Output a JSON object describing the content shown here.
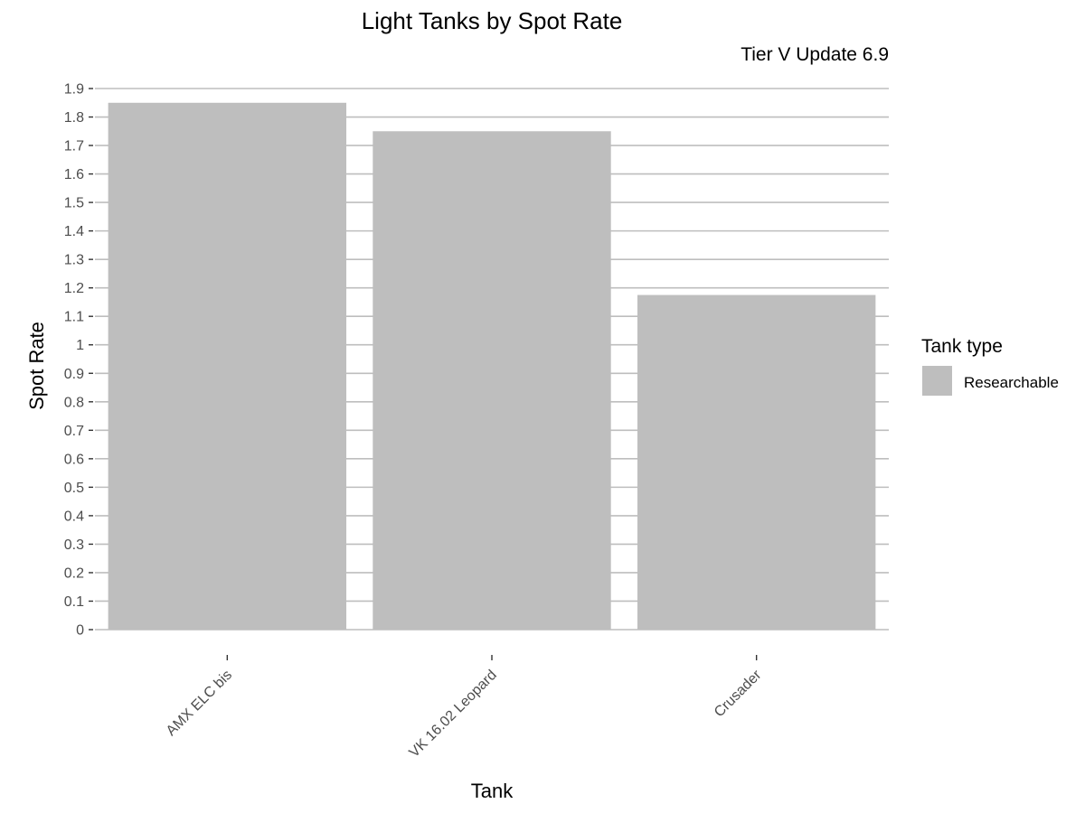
{
  "chart_data": {
    "type": "bar",
    "title": "Light Tanks by Spot Rate",
    "subtitle": "Tier V Update 6.9",
    "xlabel": "Tank",
    "ylabel": "Spot Rate",
    "categories": [
      "AMX ELC bis",
      "VK 16.02 Leopard",
      "Crusader"
    ],
    "values": [
      1.85,
      1.75,
      1.175
    ],
    "ylim": [
      0,
      1.9
    ],
    "yticks": [
      "0",
      "0.1",
      "0.2",
      "0.3",
      "0.4",
      "0.5",
      "0.6",
      "0.7",
      "0.8",
      "0.9",
      "1",
      "1.1",
      "1.2",
      "1.3",
      "1.4",
      "1.5",
      "1.6",
      "1.7",
      "1.8",
      "1.9"
    ],
    "grid": "horizontal",
    "legend": {
      "title": "Tank type",
      "items": [
        {
          "label": "Researchable",
          "color": "#bebebe"
        }
      ],
      "placement": "right"
    },
    "bar_color": "#bebebe",
    "gridline_color": "#bebebe"
  }
}
